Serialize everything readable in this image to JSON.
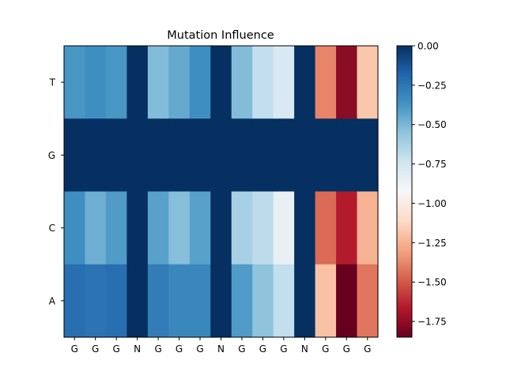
{
  "chart_data": {
    "type": "heatmap",
    "title": "Mutation Influence",
    "xlabel": "",
    "ylabel": "",
    "x_categories": [
      "G",
      "G",
      "G",
      "N",
      "G",
      "G",
      "G",
      "N",
      "G",
      "G",
      "G",
      "N",
      "G",
      "G",
      "G"
    ],
    "y_categories": [
      "T",
      "G",
      "C",
      "A"
    ],
    "values": [
      [
        -0.38,
        -0.35,
        -0.38,
        0.0,
        -0.52,
        -0.45,
        -0.35,
        0.0,
        -0.52,
        -0.7,
        -0.78,
        0.0,
        -1.38,
        -1.76,
        -1.18
      ],
      [
        0.0,
        0.0,
        0.0,
        0.0,
        0.0,
        0.0,
        0.0,
        0.0,
        0.0,
        0.0,
        0.0,
        0.0,
        0.0,
        0.0,
        0.0
      ],
      [
        -0.35,
        -0.47,
        -0.4,
        0.0,
        -0.42,
        -0.53,
        -0.42,
        0.0,
        -0.62,
        -0.68,
        -0.85,
        0.0,
        -1.45,
        -1.66,
        -1.25
      ],
      [
        -0.22,
        -0.24,
        -0.22,
        0.0,
        -0.28,
        -0.32,
        -0.32,
        0.0,
        -0.4,
        -0.55,
        -0.7,
        0.0,
        -1.2,
        -1.85,
        -1.42
      ]
    ],
    "colormap": "RdBu",
    "vmin": -1.85,
    "vmax": 0.0,
    "colorbar_ticks": [
      "0.00",
      "−0.25",
      "−0.50",
      "−0.75",
      "−1.00",
      "−1.25",
      "−1.50",
      "−1.75"
    ],
    "colorbar_tick_values": [
      0.0,
      -0.25,
      -0.5,
      -0.75,
      -1.0,
      -1.25,
      -1.5,
      -1.75
    ],
    "grid": false,
    "legend": "colorbar-right"
  }
}
